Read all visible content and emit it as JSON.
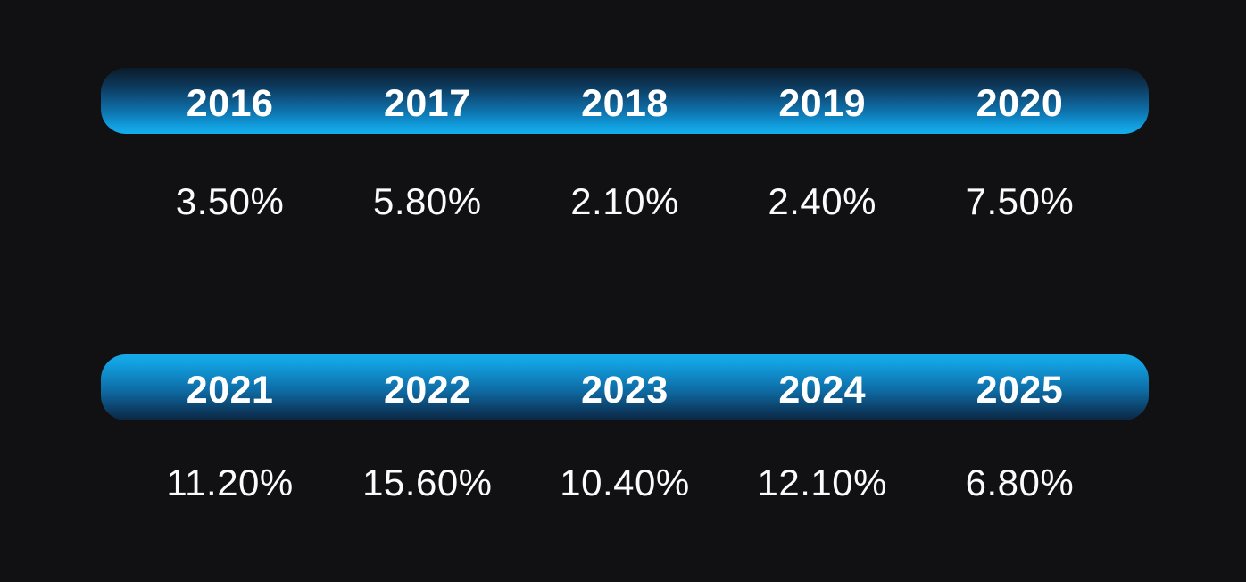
{
  "colors": {
    "background": "#111114",
    "bar_bright_blue": "#16abe9",
    "bar_mid_blue": "#0e6ba3",
    "bar_dark_navy": "#0b1b2a",
    "text": "#ffffff"
  },
  "chart_data": {
    "type": "table",
    "title": "",
    "categories": [
      "2016",
      "2017",
      "2018",
      "2019",
      "2020",
      "2021",
      "2022",
      "2023",
      "2024",
      "2025"
    ],
    "values": [
      3.5,
      5.8,
      2.1,
      2.4,
      7.5,
      11.2,
      15.6,
      10.4,
      12.1,
      6.8
    ],
    "value_format": "percent, two decimals",
    "layout": "two stacked groups of five columns; each group has a rounded gradient year header bar with a percentage value row beneath; dark background, grid off, no legend"
  },
  "table": {
    "rows": [
      {
        "years": [
          "2016",
          "2017",
          "2018",
          "2019",
          "2020"
        ],
        "values": [
          "3.50%",
          "5.80%",
          "2.10%",
          "2.40%",
          "7.50%"
        ]
      },
      {
        "years": [
          "2021",
          "2022",
          "2023",
          "2024",
          "2025"
        ],
        "values": [
          "11.20%",
          "15.60%",
          "10.40%",
          "12.10%",
          "6.80%"
        ]
      }
    ]
  }
}
